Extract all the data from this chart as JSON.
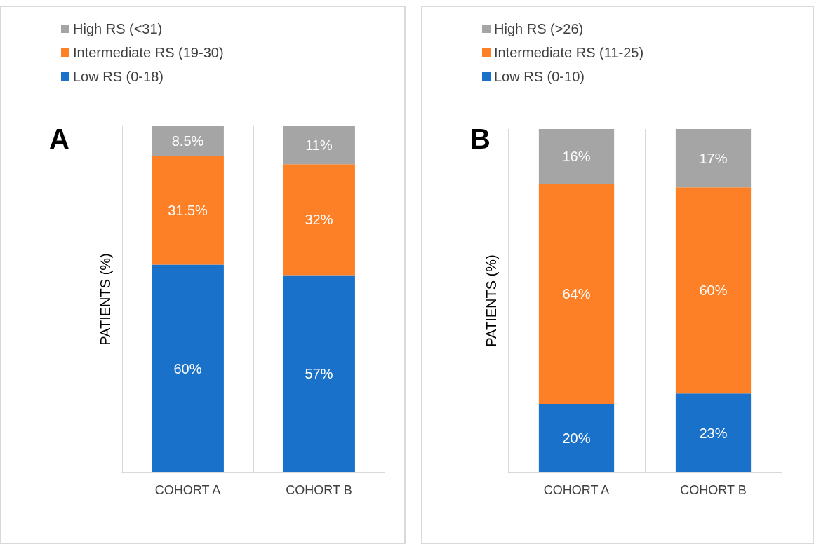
{
  "chart_data": [
    {
      "type": "bar",
      "stacked": true,
      "relative": false,
      "ylabel": "PATIENTS (%)",
      "annotations": [
        "A"
      ],
      "categories": [
        "COHORT A",
        "COHORT B"
      ],
      "grid": "x",
      "legend": "top left",
      "series": [
        {
          "name": "Low RS (0-18)",
          "color": "#1a71c9",
          "values": [
            60,
            57
          ],
          "value_labels": [
            "60%",
            "57%"
          ]
        },
        {
          "name": "Intermediate RS (19-30)",
          "color": "#fd7f26",
          "values": [
            31.5,
            32
          ],
          "value_labels": [
            "31.5%",
            "32%"
          ]
        },
        {
          "name": "High RS (<31)",
          "color": "#a5a5a5",
          "values": [
            8.5,
            11
          ],
          "value_labels": [
            "8.5%",
            "11%"
          ]
        }
      ]
    },
    {
      "type": "bar",
      "stacked": true,
      "relative": false,
      "ylabel": "PATIENTS (%)",
      "annotations": [
        "B"
      ],
      "categories": [
        "COHORT A",
        "COHORT B"
      ],
      "grid": "x",
      "legend": "top left",
      "series": [
        {
          "name": "Low RS (0-10)",
          "color": "#1a71c9",
          "values": [
            20,
            23
          ],
          "value_labels": [
            "20%",
            "23%"
          ]
        },
        {
          "name": "Intermediate RS (11-25)",
          "color": "#fd7f26",
          "values": [
            64,
            60
          ],
          "value_labels": [
            "64%",
            "60%"
          ]
        },
        {
          "name": "High RS (>26)",
          "color": "#a5a5a5",
          "values": [
            16,
            17
          ],
          "value_labels": [
            "16%",
            "17%"
          ]
        }
      ]
    }
  ]
}
